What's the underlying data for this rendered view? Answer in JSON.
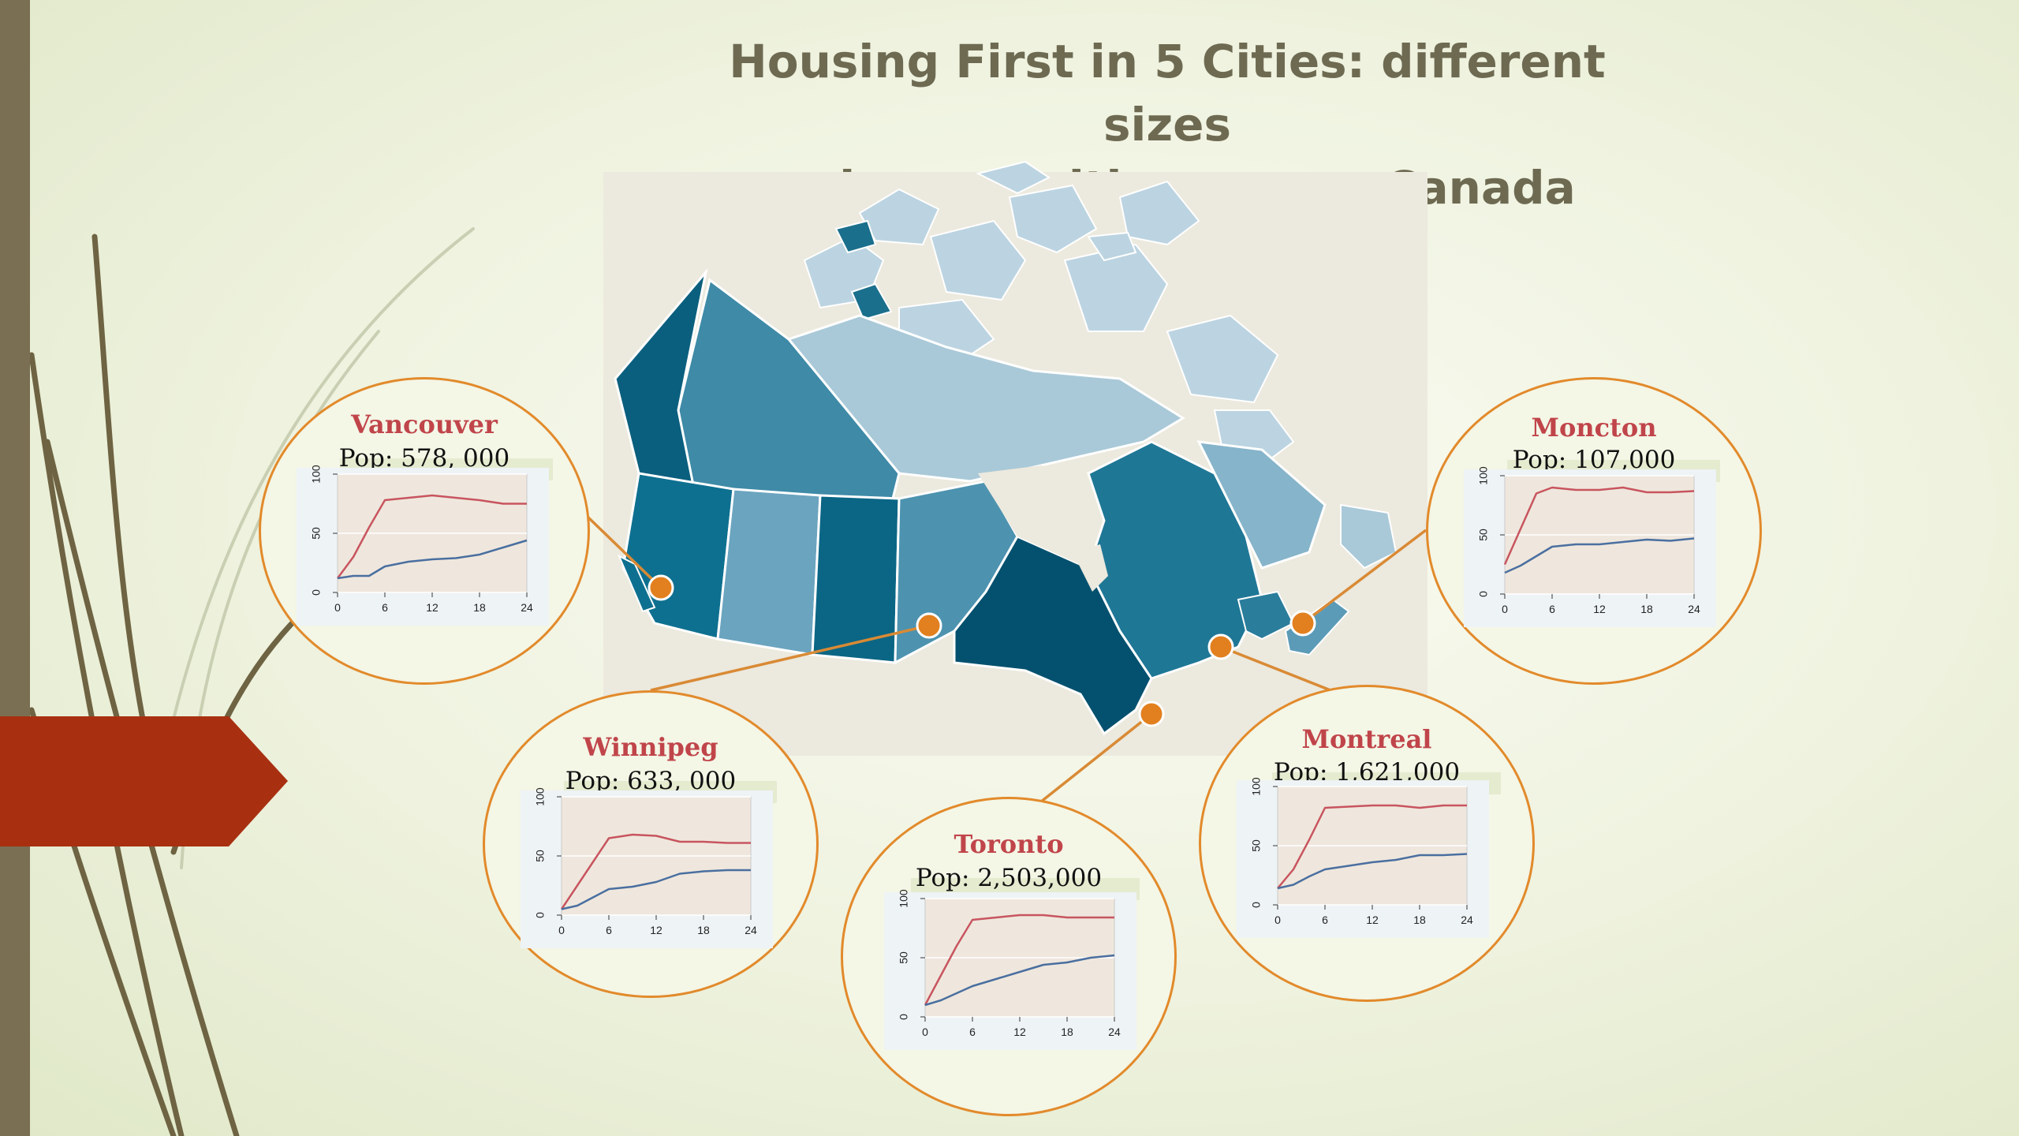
{
  "slide": {
    "title_line1": "Housing First in 5 Cities: different sizes",
    "title_line2": "and composition across Canada"
  },
  "colors": {
    "accent_orange": "#e28a2b",
    "city_name_red": "#c0454a",
    "line_red": "#c8555f",
    "line_blue": "#4a6fa0",
    "map_dark": "#0b5f7e",
    "map_light": "#a9c9d8"
  },
  "cities": [
    {
      "name": "Vancouver",
      "pop": "Pop: 578, 000",
      "chart_data": {
        "type": "line",
        "x": [
          0,
          2,
          4,
          6,
          9,
          12,
          15,
          18,
          21,
          24
        ],
        "series": [
          {
            "values": [
              12,
              30,
              55,
              78,
              80,
              82,
              80,
              78,
              75,
              75
            ]
          },
          {
            "values": [
              12,
              14,
              14,
              22,
              26,
              28,
              29,
              32,
              38,
              44
            ]
          }
        ],
        "xticks": [
          "0",
          "6",
          "12",
          "18",
          "24"
        ],
        "yticks": [
          "0",
          "50",
          "100"
        ],
        "xlim": [
          0,
          24
        ],
        "ylim": [
          0,
          100
        ]
      }
    },
    {
      "name": "Winnipeg",
      "pop": "Pop: 633, 000",
      "chart_data": {
        "type": "line",
        "x": [
          0,
          2,
          4,
          6,
          9,
          12,
          15,
          18,
          21,
          24
        ],
        "series": [
          {
            "values": [
              5,
              25,
              45,
              65,
              68,
              67,
              62,
              62,
              61,
              61
            ]
          },
          {
            "values": [
              5,
              8,
              15,
              22,
              24,
              28,
              35,
              37,
              38,
              38
            ]
          }
        ],
        "xticks": [
          "0",
          "6",
          "12",
          "18",
          "24"
        ],
        "yticks": [
          "0",
          "50",
          "100"
        ],
        "xlim": [
          0,
          24
        ],
        "ylim": [
          0,
          100
        ]
      }
    },
    {
      "name": "Toronto",
      "pop": "Pop: 2,503,000",
      "chart_data": {
        "type": "line",
        "x": [
          0,
          2,
          4,
          6,
          9,
          12,
          15,
          18,
          21,
          24
        ],
        "series": [
          {
            "values": [
              10,
              35,
              60,
              82,
              84,
              86,
              86,
              84,
              84,
              84
            ]
          },
          {
            "values": [
              10,
              14,
              20,
              26,
              32,
              38,
              44,
              46,
              50,
              52
            ]
          }
        ],
        "xticks": [
          "0",
          "6",
          "12",
          "18",
          "24"
        ],
        "yticks": [
          "0",
          "50",
          "100"
        ],
        "xlim": [
          0,
          24
        ],
        "ylim": [
          0,
          100
        ]
      }
    },
    {
      "name": "Montreal",
      "pop": "Pop: 1,621,000",
      "chart_data": {
        "type": "line",
        "x": [
          0,
          2,
          4,
          6,
          9,
          12,
          15,
          18,
          21,
          24
        ],
        "series": [
          {
            "values": [
              14,
              30,
              55,
              82,
              83,
              84,
              84,
              82,
              84,
              84
            ]
          },
          {
            "values": [
              14,
              17,
              24,
              30,
              33,
              36,
              38,
              42,
              42,
              43
            ]
          }
        ],
        "xticks": [
          "0",
          "6",
          "12",
          "18",
          "24"
        ],
        "yticks": [
          "0",
          "50",
          "100"
        ],
        "xlim": [
          0,
          24
        ],
        "ylim": [
          0,
          100
        ]
      }
    },
    {
      "name": "Moncton",
      "pop": "Pop: 107,000",
      "chart_data": {
        "type": "line",
        "x": [
          0,
          2,
          4,
          6,
          9,
          12,
          15,
          18,
          21,
          24
        ],
        "series": [
          {
            "values": [
              25,
              55,
              85,
              90,
              88,
              88,
              90,
              86,
              86,
              87
            ]
          },
          {
            "values": [
              18,
              24,
              32,
              40,
              42,
              42,
              44,
              46,
              45,
              47
            ]
          }
        ],
        "xticks": [
          "0",
          "6",
          "12",
          "18",
          "24"
        ],
        "yticks": [
          "0",
          "50",
          "100"
        ],
        "xlim": [
          0,
          24
        ],
        "ylim": [
          0,
          100
        ]
      }
    }
  ]
}
